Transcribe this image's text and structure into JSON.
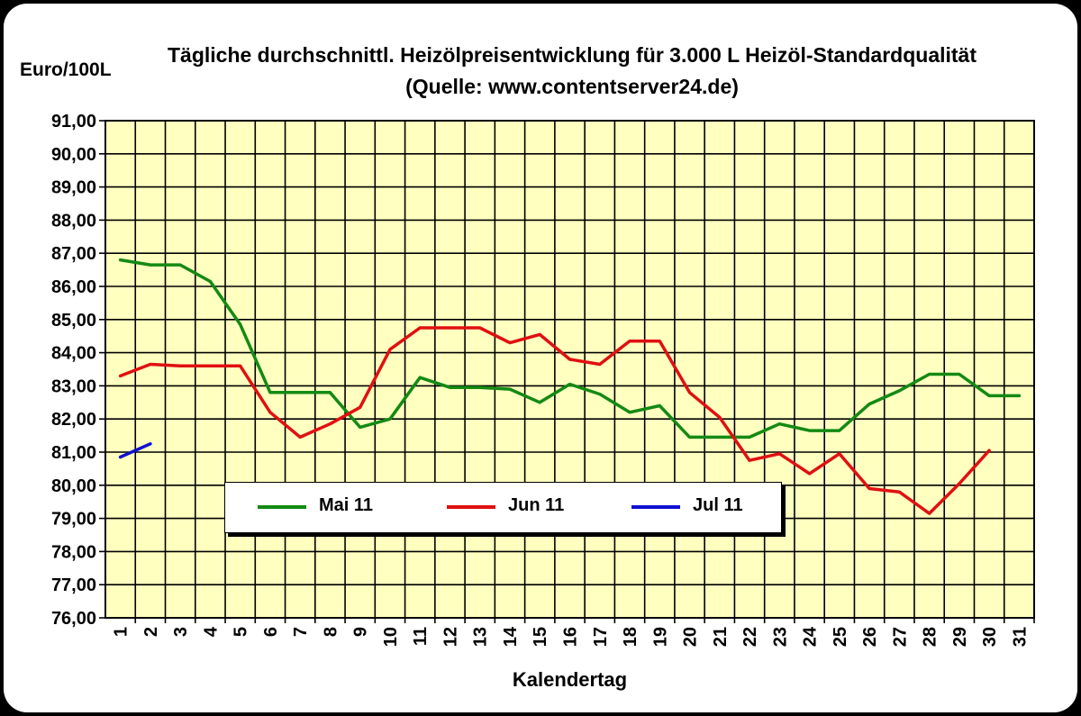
{
  "title": "Tägliche durchschnittl. Heizölpreisentwicklung für 3.000 L Heizöl-Standardqualität (Quelle: www.contentserver24.de)",
  "yunit": "Euro/100L",
  "colors": {
    "plot_bg": "#ffffc0",
    "grid": "#000000",
    "mai": "#138a13",
    "jun": "#e01010",
    "jul": "#1010d0"
  },
  "chart_data": {
    "type": "line",
    "title": "Tägliche durchschnittl. Heizölpreisentwicklung für 3.000 L Heizöl-Standardqualität (Quelle: www.contentserver24.de)",
    "xlabel": "Kalendertag",
    "ylabel": "Euro/100L",
    "ylim": [
      76,
      91
    ],
    "y_ticks": [
      "76,00",
      "77,00",
      "78,00",
      "79,00",
      "80,00",
      "81,00",
      "82,00",
      "83,00",
      "84,00",
      "85,00",
      "86,00",
      "87,00",
      "88,00",
      "89,00",
      "90,00",
      "91,00"
    ],
    "x": [
      1,
      2,
      3,
      4,
      5,
      6,
      7,
      8,
      9,
      10,
      11,
      12,
      13,
      14,
      15,
      16,
      17,
      18,
      19,
      20,
      21,
      22,
      23,
      24,
      25,
      26,
      27,
      28,
      29,
      30,
      31
    ],
    "grid": true,
    "legend_position": "bottom-center",
    "series": [
      {
        "name": "Mai 11",
        "color_key": "mai",
        "values": [
          86.8,
          86.65,
          86.65,
          86.15,
          84.85,
          82.8,
          82.8,
          82.8,
          81.75,
          82.0,
          83.25,
          82.95,
          82.95,
          82.9,
          82.5,
          83.05,
          82.75,
          82.2,
          82.4,
          81.45,
          81.45,
          81.45,
          81.85,
          81.65,
          81.65,
          82.45,
          82.85,
          83.35,
          83.35,
          82.7,
          82.7
        ]
      },
      {
        "name": "Jun 11",
        "color_key": "jun",
        "values": [
          83.3,
          83.65,
          83.6,
          83.6,
          83.6,
          82.2,
          81.45,
          81.85,
          82.35,
          84.1,
          84.75,
          84.75,
          84.75,
          84.3,
          84.55,
          83.8,
          83.65,
          84.35,
          84.35,
          82.8,
          82.05,
          80.75,
          80.95,
          80.35,
          80.95,
          79.9,
          79.8,
          79.15,
          80.05,
          81.05,
          null
        ]
      },
      {
        "name": "Jul 11",
        "color_key": "jul",
        "values": [
          80.85,
          81.25,
          null,
          null,
          null,
          null,
          null,
          null,
          null,
          null,
          null,
          null,
          null,
          null,
          null,
          null,
          null,
          null,
          null,
          null,
          null,
          null,
          null,
          null,
          null,
          null,
          null,
          null,
          null,
          null,
          null
        ]
      }
    ]
  }
}
